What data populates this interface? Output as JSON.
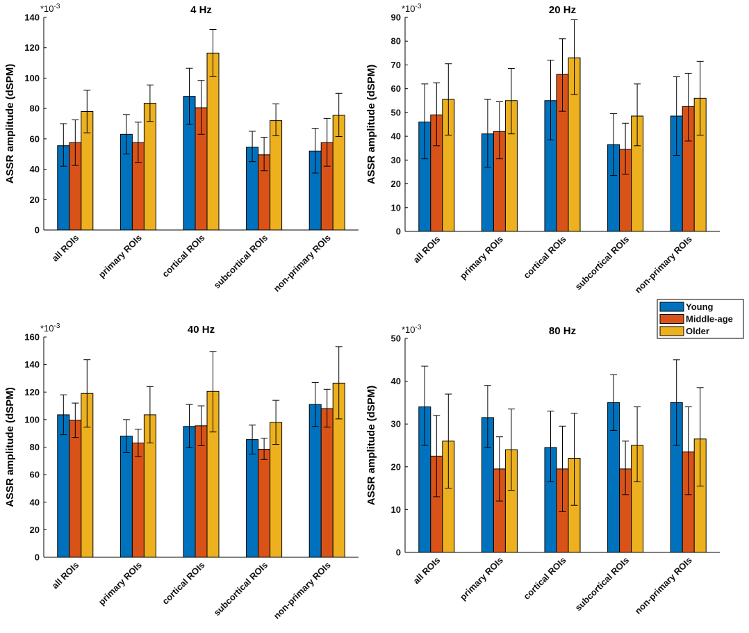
{
  "chart_data": [
    {
      "type": "bar",
      "title": "4 Hz",
      "xlabel": "",
      "ylabel": "ASSR amplitude (dSPM)",
      "exponent_label": "*10",
      "exponent_power": "-3",
      "ylim": [
        0,
        140
      ],
      "yticks": [
        0,
        20,
        40,
        60,
        80,
        100,
        120,
        140
      ],
      "categories": [
        "all ROIs",
        "primary ROIs",
        "cortical ROIs",
        "subcortical ROIs",
        "non-primary ROIs"
      ],
      "series": [
        {
          "name": "Young",
          "values": [
            55.5,
            63,
            88,
            54.5,
            52
          ],
          "err_low": [
            42,
            50,
            69.5,
            45,
            37.5
          ],
          "err_high": [
            70,
            76,
            106.5,
            65,
            67
          ]
        },
        {
          "name": "Middle-age",
          "values": [
            57.5,
            57.5,
            80.5,
            49.5,
            57.5
          ],
          "err_low": [
            42.5,
            44.5,
            63,
            39,
            42
          ],
          "err_high": [
            72.5,
            71,
            98.5,
            61,
            73.5
          ]
        },
        {
          "name": "Older",
          "values": [
            78,
            83.5,
            116.5,
            72,
            75.5
          ],
          "err_low": [
            64,
            71.5,
            101,
            62,
            61.5
          ],
          "err_high": [
            92,
            95.5,
            132,
            83,
            90
          ]
        }
      ]
    },
    {
      "type": "bar",
      "title": "20 Hz",
      "xlabel": "",
      "ylabel": "ASSR amplitude (dSPM)",
      "exponent_label": "*10",
      "exponent_power": "-3",
      "ylim": [
        0,
        90
      ],
      "yticks": [
        0,
        10,
        20,
        30,
        40,
        50,
        60,
        70,
        80,
        90
      ],
      "categories": [
        "all ROIs",
        "primary ROIs",
        "cortical ROIs",
        "subcortical ROIs",
        "non-primary ROIs"
      ],
      "series": [
        {
          "name": "Young",
          "values": [
            46,
            41,
            55,
            36.5,
            48.5
          ],
          "err_low": [
            30.5,
            27,
            38.5,
            23.5,
            32
          ],
          "err_high": [
            62,
            55.5,
            72,
            49.5,
            65
          ]
        },
        {
          "name": "Middle-age",
          "values": [
            49,
            42,
            66,
            34.5,
            52.5
          ],
          "err_low": [
            36,
            30.5,
            50.5,
            24,
            38
          ],
          "err_high": [
            62.5,
            54.5,
            81,
            45.5,
            66.5
          ]
        },
        {
          "name": "Older",
          "values": [
            55.5,
            55,
            73,
            48.5,
            56
          ],
          "err_low": [
            40.5,
            41,
            57.5,
            36,
            40.5
          ],
          "err_high": [
            70.5,
            68.5,
            89,
            62,
            71.5
          ]
        }
      ]
    },
    {
      "type": "bar",
      "title": "40 Hz",
      "xlabel": "",
      "ylabel": "ASSR amplitude (dSPM)",
      "exponent_label": "*10",
      "exponent_power": "-3",
      "ylim": [
        0,
        160
      ],
      "yticks": [
        0,
        20,
        40,
        60,
        80,
        100,
        120,
        140,
        160
      ],
      "categories": [
        "all ROIs",
        "primary ROIs",
        "cortical ROIs",
        "subcortical ROIs",
        "non-primary ROIs"
      ],
      "series": [
        {
          "name": "Young",
          "values": [
            103.5,
            88,
            95,
            85.5,
            111
          ],
          "err_low": [
            89,
            76,
            79.5,
            75,
            95
          ],
          "err_high": [
            118,
            100,
            111,
            96,
            127
          ]
        },
        {
          "name": "Middle-age",
          "values": [
            99.5,
            83,
            95.5,
            78.5,
            108
          ],
          "err_low": [
            87,
            73,
            81,
            71,
            94.5
          ],
          "err_high": [
            112,
            93,
            110,
            86.5,
            122
          ]
        },
        {
          "name": "Older",
          "values": [
            119,
            103.5,
            120.5,
            98,
            126.5
          ],
          "err_low": [
            94.5,
            83,
            91,
            82,
            100.5
          ],
          "err_high": [
            143.5,
            124,
            149.5,
            114,
            153
          ]
        }
      ]
    },
    {
      "type": "bar",
      "title": "80 Hz",
      "xlabel": "",
      "ylabel": "ASSR amplitude (dSPM)",
      "exponent_label": "*10",
      "exponent_power": "-3",
      "ylim": [
        0,
        50
      ],
      "yticks": [
        0,
        10,
        20,
        30,
        40,
        50
      ],
      "categories": [
        "all ROIs",
        "primary ROIs",
        "cortical ROIs",
        "subcortical ROIs",
        "non-primary ROIs"
      ],
      "series": [
        {
          "name": "Young",
          "values": [
            34,
            31.5,
            24.5,
            35,
            35
          ],
          "err_low": [
            25,
            24.5,
            16.5,
            28.5,
            25
          ],
          "err_high": [
            43.5,
            39,
            33,
            41.5,
            45
          ]
        },
        {
          "name": "Middle-age",
          "values": [
            22.5,
            19.5,
            19.5,
            19.5,
            23.5
          ],
          "err_low": [
            13,
            12,
            9.5,
            13.5,
            13.5
          ],
          "err_high": [
            32,
            27,
            29.5,
            26,
            34
          ]
        },
        {
          "name": "Older",
          "values": [
            26,
            24,
            22,
            25,
            26.5
          ],
          "err_low": [
            15,
            14.5,
            11,
            16.5,
            15.5
          ],
          "err_high": [
            37,
            33.5,
            32.5,
            34,
            38.5
          ]
        }
      ]
    }
  ],
  "legend": {
    "items": [
      {
        "name": "Young",
        "color": "#0072bd"
      },
      {
        "name": "Middle-age",
        "color": "#d95319"
      },
      {
        "name": "Older",
        "color": "#edb120"
      }
    ]
  },
  "colors": [
    "#0072bd",
    "#d95319",
    "#edb120"
  ]
}
